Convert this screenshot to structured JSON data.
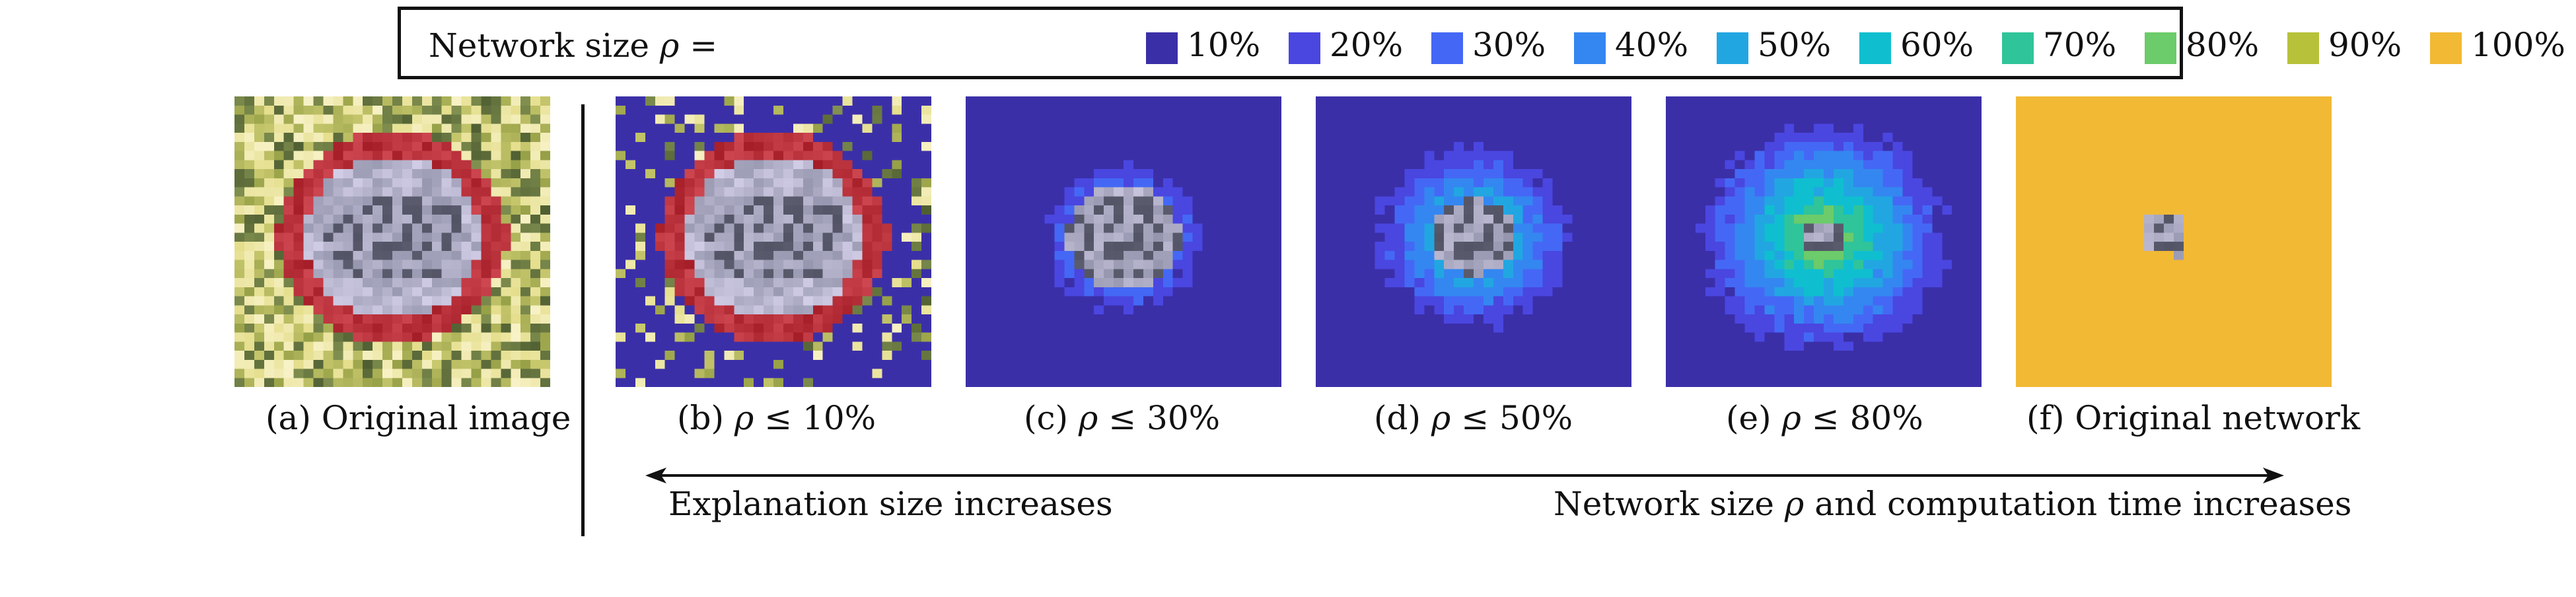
{
  "legend": {
    "title_prefix": "Network size ",
    "title_symbol": "ρ",
    "title_suffix": " =",
    "entries": [
      {
        "label": "10%",
        "color": "#3b2fa8"
      },
      {
        "label": "20%",
        "color": "#4a46e0"
      },
      {
        "label": "30%",
        "color": "#4468f5"
      },
      {
        "label": "40%",
        "color": "#3487f0"
      },
      {
        "label": "50%",
        "color": "#22a6e2"
      },
      {
        "label": "60%",
        "color": "#0fbfcf"
      },
      {
        "label": "70%",
        "color": "#30c49a"
      },
      {
        "label": "80%",
        "color": "#6ccb6a"
      },
      {
        "label": "90%",
        "color": "#b7c23a"
      },
      {
        "label": "100%",
        "color": "#f2b935"
      }
    ]
  },
  "panels": [
    {
      "id": "a",
      "caption_prefix": "(a) Original image",
      "caption_symbol": "",
      "caption_suffix": "",
      "image": "original-sign"
    },
    {
      "id": "b",
      "caption_prefix": "(b) ",
      "caption_symbol": "ρ",
      "caption_suffix": " ≤ 10%",
      "image": "explanation-10"
    },
    {
      "id": "c",
      "caption_prefix": "(c) ",
      "caption_symbol": "ρ",
      "caption_suffix": " ≤ 30%",
      "image": "explanation-30"
    },
    {
      "id": "d",
      "caption_prefix": "(d) ",
      "caption_symbol": "ρ",
      "caption_suffix": " ≤ 50%",
      "image": "explanation-50"
    },
    {
      "id": "e",
      "caption_prefix": "(e) ",
      "caption_symbol": "ρ",
      "caption_suffix": " ≤ 80%",
      "image": "explanation-80"
    },
    {
      "id": "f",
      "caption_prefix": "(f) Original network",
      "caption_symbol": "",
      "caption_suffix": "",
      "image": "explanation-100"
    }
  ],
  "arrow": {
    "left_label": "Explanation size increases",
    "right_prefix": "Network size ",
    "right_symbol": "ρ",
    "right_suffix": " and computation time increases"
  }
}
